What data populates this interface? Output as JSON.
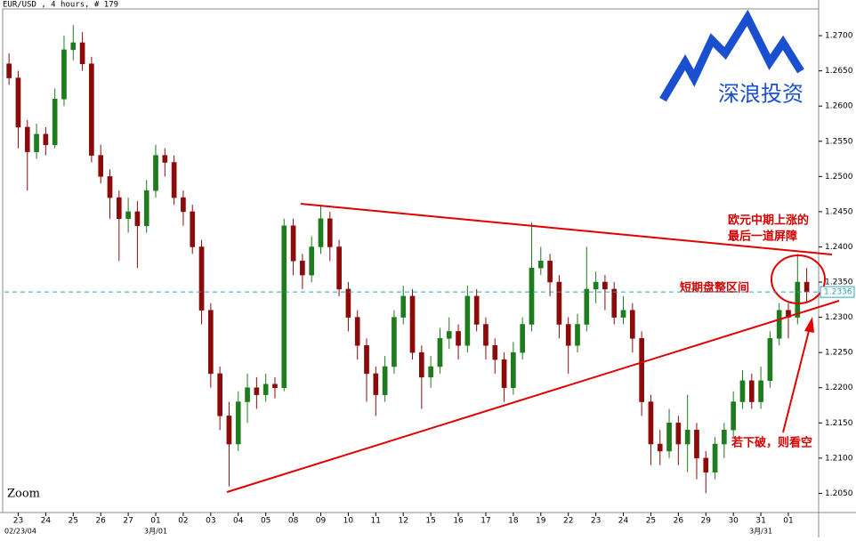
{
  "chart_data": {
    "type": "candlestick",
    "title": "EUR/USD , 4 hours, # 179",
    "zoom_label": "Zoom",
    "logo": "深浪投资",
    "annotations": [
      "欧元中期上涨的",
      "最后一道屏障",
      "短期盘整区间",
      "若下破，则看空"
    ],
    "up_color": "#1e7b1e",
    "down_color": "#8b0a0a",
    "ylim": [
      1.2024,
      1.2738
    ],
    "yticks": [
      {
        "value": 1.205,
        "label": "1.2050"
      },
      {
        "value": 1.21,
        "label": "1.2100"
      },
      {
        "value": 1.215,
        "label": "1.2150"
      },
      {
        "value": 1.22,
        "label": "1.2200"
      },
      {
        "value": 1.225,
        "label": "1.2250"
      },
      {
        "value": 1.23,
        "label": "1.2300"
      },
      {
        "value": 1.235,
        "label": "1.2350"
      },
      {
        "value": 1.24,
        "label": "1.2400"
      },
      {
        "value": 1.245,
        "label": "1.2450"
      },
      {
        "value": 1.25,
        "label": "1.2500"
      },
      {
        "value": 1.255,
        "label": "1.2550"
      },
      {
        "value": 1.26,
        "label": "1.2600"
      },
      {
        "value": 1.265,
        "label": "1.2650"
      },
      {
        "value": 1.27,
        "label": "1.2700"
      }
    ],
    "current_price": {
      "value": 1.2336,
      "label": "1.2336"
    },
    "xlim": [
      0,
      88.8
    ],
    "xticks": [
      {
        "value": 1.5,
        "label": "23"
      },
      {
        "value": 4.5,
        "label": "24"
      },
      {
        "value": 7.5,
        "label": "25"
      },
      {
        "value": 10.5,
        "label": "26"
      },
      {
        "value": 13.5,
        "label": "27"
      },
      {
        "value": 16.5,
        "label": "01"
      },
      {
        "value": 19.5,
        "label": "02"
      },
      {
        "value": 22.5,
        "label": "03"
      },
      {
        "value": 25.5,
        "label": "04"
      },
      {
        "value": 28.5,
        "label": "05"
      },
      {
        "value": 31.5,
        "label": "08"
      },
      {
        "value": 34.5,
        "label": "09"
      },
      {
        "value": 37.5,
        "label": "10"
      },
      {
        "value": 40.5,
        "label": "11"
      },
      {
        "value": 43.5,
        "label": "12"
      },
      {
        "value": 46.5,
        "label": "15"
      },
      {
        "value": 49.5,
        "label": "16"
      },
      {
        "value": 52.5,
        "label": "17"
      },
      {
        "value": 55.5,
        "label": "18"
      },
      {
        "value": 58.5,
        "label": "19"
      },
      {
        "value": 61.5,
        "label": "22"
      },
      {
        "value": 64.5,
        "label": "23"
      },
      {
        "value": 67.5,
        "label": "24"
      },
      {
        "value": 70.5,
        "label": "25"
      },
      {
        "value": 73.5,
        "label": "26"
      },
      {
        "value": 76.5,
        "label": "29"
      },
      {
        "value": 79.5,
        "label": "30"
      },
      {
        "value": 82.5,
        "label": "31"
      },
      {
        "value": 85.5,
        "label": "01"
      }
    ],
    "xticks_secondary": [
      {
        "value": 0,
        "label": "02/23/04"
      },
      {
        "value": 16.5,
        "label": "3月/01"
      },
      {
        "value": 82.5,
        "label": "3月/31"
      }
    ],
    "open": [
      1.266,
      1.264,
      1.257,
      1.2535,
      1.256,
      1.2545,
      1.261,
      1.268,
      1.269,
      1.266,
      1.253,
      1.25,
      1.247,
      1.244,
      1.245,
      1.243,
      1.248,
      1.253,
      1.252,
      1.247,
      1.245,
      1.24,
      1.231,
      1.222,
      1.216,
      1.212,
      1.218,
      1.22,
      1.219,
      1.2205,
      1.22,
      1.243,
      1.238,
      1.236,
      1.24,
      1.244,
      1.24,
      1.234,
      1.23,
      1.226,
      1.222,
      1.219,
      1.223,
      1.23,
      1.233,
      1.225,
      1.2215,
      1.223,
      1.227,
      1.228,
      1.226,
      1.233,
      1.229,
      1.226,
      1.224,
      1.22,
      1.225,
      1.229,
      1.237,
      1.238,
      1.235,
      1.229,
      1.226,
      1.229,
      1.234,
      1.235,
      1.234,
      1.23,
      1.231,
      1.227,
      1.218,
      1.212,
      1.211,
      1.215,
      1.212,
      1.214,
      1.21,
      1.208,
      1.212,
      1.214,
      1.218,
      1.221,
      1.218,
      1.221,
      1.227,
      1.231,
      1.23,
      1.235
    ],
    "high": [
      1.2675,
      1.265,
      1.258,
      1.2575,
      1.257,
      1.2625,
      1.27,
      1.2715,
      1.2705,
      1.267,
      1.2545,
      1.251,
      1.248,
      1.247,
      1.2465,
      1.2495,
      1.2545,
      1.254,
      1.253,
      1.248,
      1.246,
      1.241,
      1.232,
      1.223,
      1.218,
      1.2195,
      1.222,
      1.2215,
      1.222,
      1.2215,
      1.244,
      1.244,
      1.239,
      1.2415,
      1.246,
      1.245,
      1.241,
      1.235,
      1.231,
      1.227,
      1.223,
      1.2245,
      1.231,
      1.2345,
      1.234,
      1.226,
      1.2245,
      1.2285,
      1.23,
      1.229,
      1.2345,
      1.234,
      1.23,
      1.227,
      1.225,
      1.2265,
      1.23,
      1.2435,
      1.24,
      1.239,
      1.236,
      1.23,
      1.2305,
      1.24,
      1.2365,
      1.236,
      1.235,
      1.233,
      1.232,
      1.228,
      1.219,
      1.214,
      1.217,
      1.216,
      1.219,
      1.215,
      1.211,
      1.213,
      1.215,
      1.2195,
      1.2225,
      1.222,
      1.223,
      1.228,
      1.232,
      1.232,
      1.239,
      1.237
    ],
    "low": [
      1.263,
      1.254,
      1.248,
      1.2525,
      1.253,
      1.254,
      1.26,
      1.2665,
      1.265,
      1.252,
      1.249,
      1.244,
      1.238,
      1.242,
      1.237,
      1.242,
      1.247,
      1.25,
      1.246,
      1.243,
      1.239,
      1.229,
      1.22,
      1.214,
      1.206,
      1.211,
      1.215,
      1.217,
      1.218,
      1.2185,
      1.2195,
      1.236,
      1.234,
      1.235,
      1.239,
      1.238,
      1.233,
      1.228,
      1.224,
      1.218,
      1.216,
      1.218,
      1.222,
      1.229,
      1.224,
      1.217,
      1.22,
      1.222,
      1.2255,
      1.224,
      1.225,
      1.228,
      1.224,
      1.222,
      1.218,
      1.219,
      1.224,
      1.228,
      1.236,
      1.233,
      1.227,
      1.222,
      1.225,
      1.228,
      1.232,
      1.231,
      1.229,
      1.229,
      1.225,
      1.216,
      1.209,
      1.209,
      1.21,
      1.209,
      1.208,
      1.207,
      1.205,
      1.207,
      1.21,
      1.213,
      1.217,
      1.217,
      1.217,
      1.22,
      1.226,
      1.227,
      1.229,
      1.232
    ],
    "close": [
      1.264,
      1.257,
      1.2535,
      1.256,
      1.2545,
      1.261,
      1.268,
      1.269,
      1.266,
      1.253,
      1.25,
      1.247,
      1.244,
      1.245,
      1.243,
      1.248,
      1.253,
      1.252,
      1.247,
      1.245,
      1.24,
      1.231,
      1.222,
      1.216,
      1.212,
      1.218,
      1.22,
      1.219,
      1.2205,
      1.22,
      1.243,
      1.238,
      1.236,
      1.24,
      1.244,
      1.24,
      1.234,
      1.23,
      1.226,
      1.222,
      1.219,
      1.223,
      1.23,
      1.233,
      1.225,
      1.2215,
      1.223,
      1.227,
      1.228,
      1.226,
      1.233,
      1.229,
      1.226,
      1.224,
      1.22,
      1.225,
      1.229,
      1.237,
      1.238,
      1.235,
      1.229,
      1.226,
      1.229,
      1.234,
      1.235,
      1.234,
      1.23,
      1.231,
      1.227,
      1.218,
      1.212,
      1.211,
      1.215,
      1.212,
      1.214,
      1.21,
      1.208,
      1.212,
      1.214,
      1.218,
      1.221,
      1.218,
      1.221,
      1.227,
      1.231,
      1.23,
      1.235,
      1.2336
    ]
  }
}
